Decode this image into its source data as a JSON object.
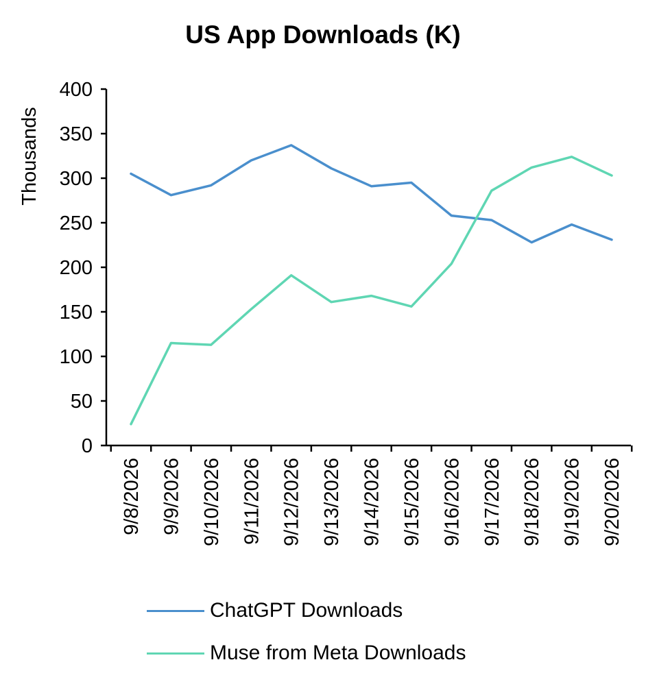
{
  "chart_data": {
    "type": "line",
    "title": "US App Downloads (K)",
    "ylabel": "Thousands",
    "xlabel": "",
    "ylim": [
      0,
      400
    ],
    "yticks": [
      "0",
      "50",
      "100",
      "150",
      "200",
      "250",
      "300",
      "350",
      "400"
    ],
    "categories": [
      "9/8/2026",
      "9/9/2026",
      "9/10/2026",
      "9/11/2026",
      "9/12/2026",
      "9/13/2026",
      "9/14/2026",
      "9/15/2026",
      "9/16/2026",
      "9/17/2026",
      "9/18/2026",
      "9/19/2026",
      "9/20/2026"
    ],
    "series": [
      {
        "name": "ChatGPT Downloads",
        "color": "#4a8fcd",
        "values": [
          305,
          281,
          292,
          320,
          337,
          311,
          291,
          295,
          258,
          253,
          228,
          248,
          231
        ]
      },
      {
        "name": "Muse from Meta Downloads",
        "color": "#5fd6b3",
        "values": [
          24,
          115,
          113,
          153,
          191,
          161,
          168,
          156,
          204,
          286,
          312,
          324,
          303
        ]
      }
    ],
    "grid": false,
    "legend_position": "bottom"
  }
}
